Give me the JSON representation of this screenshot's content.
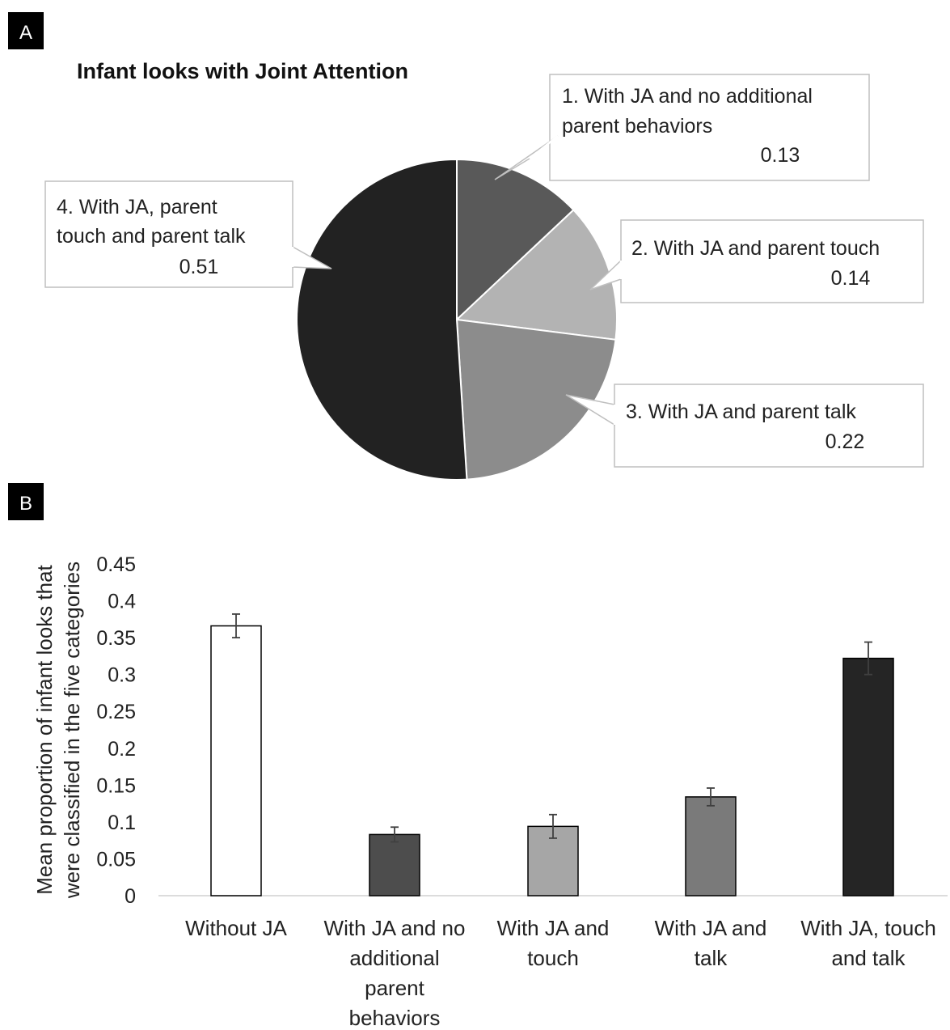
{
  "panel_a_label": "A",
  "panel_b_label": "B",
  "colors": {
    "slice1": "#595959",
    "slice2": "#b3b3b3",
    "slice3": "#8c8c8c",
    "slice4": "#222222",
    "bar1": "#ffffff",
    "bar2": "#4d4d4d",
    "bar3": "#a6a6a6",
    "bar4": "#7a7a7a",
    "bar5": "#252525"
  },
  "chart_data": [
    {
      "type": "pie",
      "title": "Infant looks with Joint Attention",
      "slices": [
        {
          "label_lines": [
            "1. With JA and no additional",
            "parent behaviors"
          ],
          "value": 0.13,
          "value_label": "0.13"
        },
        {
          "label_lines": [
            "2. With JA and parent touch"
          ],
          "value": 0.14,
          "value_label": "0.14"
        },
        {
          "label_lines": [
            "3. With JA and parent talk"
          ],
          "value": 0.22,
          "value_label": "0.22"
        },
        {
          "label_lines": [
            "4. With JA, parent",
            "touch and parent talk"
          ],
          "value": 0.51,
          "value_label": "0.51"
        }
      ]
    },
    {
      "type": "bar",
      "ylabel_lines": [
        "Mean proportion of infant looks that",
        "were classified in the five categories"
      ],
      "ylim": [
        0,
        0.45
      ],
      "yticks": [
        0,
        0.05,
        0.1,
        0.15,
        0.2,
        0.25,
        0.3,
        0.35,
        0.4,
        0.45
      ],
      "ytick_labels": [
        "0",
        "0.05",
        "0.1",
        "0.15",
        "0.2",
        "0.25",
        "0.3",
        "0.35",
        "0.4",
        "0.45"
      ],
      "categories": [
        [
          "Without JA"
        ],
        [
          "With JA and no",
          "additional",
          "parent",
          "behaviors"
        ],
        [
          "With JA and",
          "touch"
        ],
        [
          "With JA and",
          "talk"
        ],
        [
          "With JA, touch",
          "and talk"
        ]
      ],
      "values": [
        0.366,
        0.083,
        0.094,
        0.134,
        0.322
      ],
      "errors": [
        0.016,
        0.01,
        0.016,
        0.012,
        0.022
      ],
      "grid": false
    }
  ]
}
